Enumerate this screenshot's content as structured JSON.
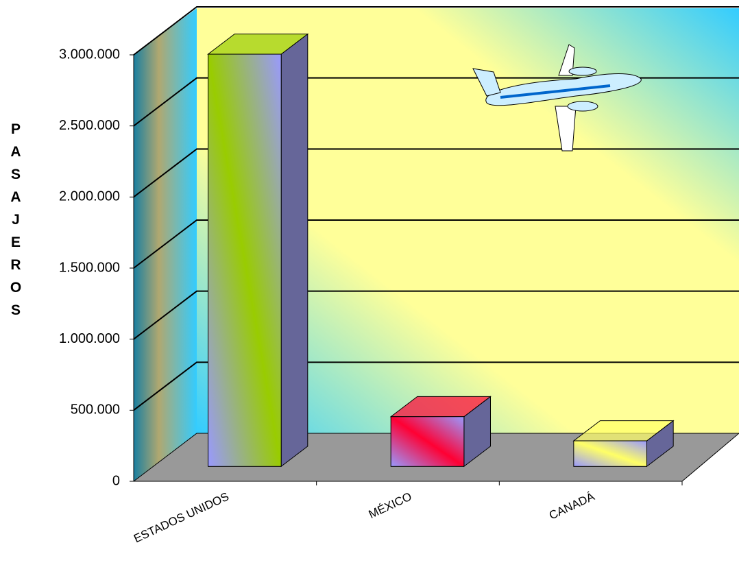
{
  "chart_data": {
    "type": "bar3d",
    "y_label": "PASAJEROS",
    "categories": [
      "ESTADOS UNIDOS",
      "MÉXICO",
      "CANADÁ"
    ],
    "values": [
      2900000,
      350000,
      180000
    ],
    "colors": [
      "#99cc00",
      "#ff0033",
      "#ffff66"
    ],
    "ylim": [
      0,
      3000000
    ],
    "yticks": [
      0,
      {
        "value": 500000,
        "label": "500.000"
      },
      {
        "value": 1000000,
        "label": "1.000.000"
      },
      {
        "value": 1500000,
        "label": "1.500.000"
      },
      {
        "value": 2000000,
        "label": "2.000.000"
      },
      {
        "value": 2500000,
        "label": "2.500.000"
      },
      {
        "value": 3000000,
        "label": "3.000.000"
      }
    ],
    "grid": true
  }
}
